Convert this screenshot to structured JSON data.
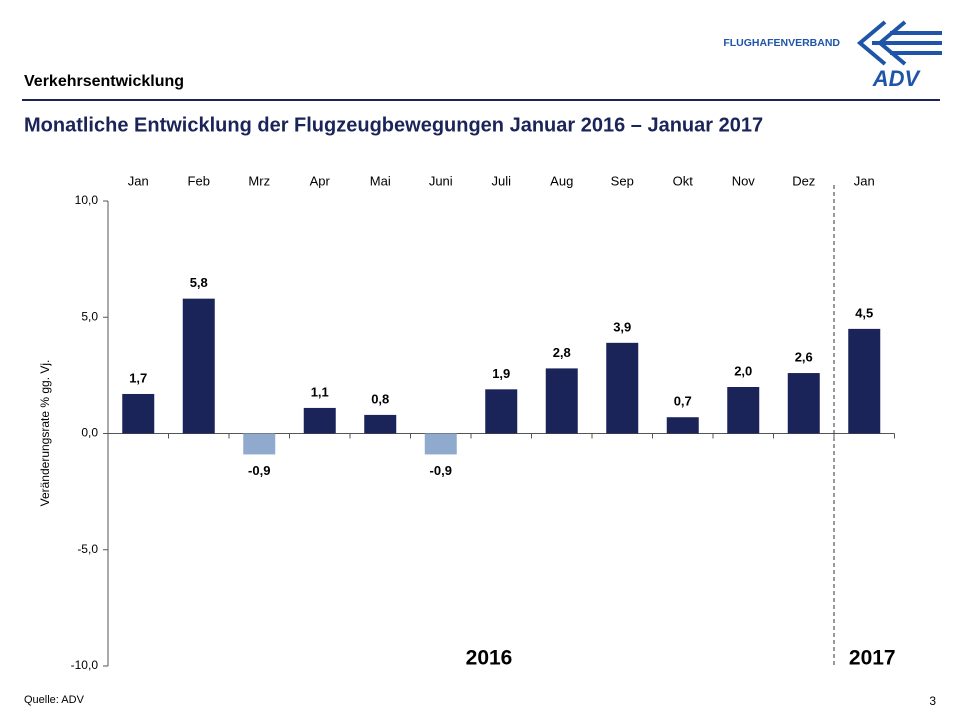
{
  "header": {
    "section": "Verkehrsentwicklung",
    "logo_text": "FLUGHAFENVERBAND",
    "logo_mark": "ADV"
  },
  "chart_data": {
    "type": "bar",
    "title": "Monatliche Entwicklung der Flugzeugbewegungen Januar 2016 – Januar 2017",
    "y_label": "Veränderungsrate % gg. Vj.",
    "categories": [
      "Jan",
      "Feb",
      "Mrz",
      "Apr",
      "Mai",
      "Juni",
      "Juli",
      "Aug",
      "Sep",
      "Okt",
      "Nov",
      "Dez",
      "Jan"
    ],
    "values": [
      1.7,
      5.8,
      -0.9,
      1.1,
      0.8,
      -0.9,
      1.9,
      2.8,
      3.9,
      0.7,
      2.0,
      2.6,
      4.5
    ],
    "value_labels": [
      "1,7",
      "5,8",
      "-0,9",
      "1,1",
      "0,8",
      "-0,9",
      "1,9",
      "2,8",
      "3,9",
      "0,7",
      "2,0",
      "2,6",
      "4,5"
    ],
    "color": "#1b2459",
    "negative_color": "#8faacc",
    "ylim": [
      -10,
      10
    ],
    "yticks": [
      {
        "value": -10,
        "label": "-10,0"
      },
      {
        "value": -5,
        "label": "-5,0"
      },
      {
        "value": 0,
        "label": "0,0"
      },
      {
        "value": 5,
        "label": "5,0"
      },
      {
        "value": 10,
        "label": "10,0"
      }
    ],
    "periods": [
      "2016",
      "2017"
    ]
  },
  "footer": {
    "source": "Quelle: ADV",
    "page": "3"
  }
}
